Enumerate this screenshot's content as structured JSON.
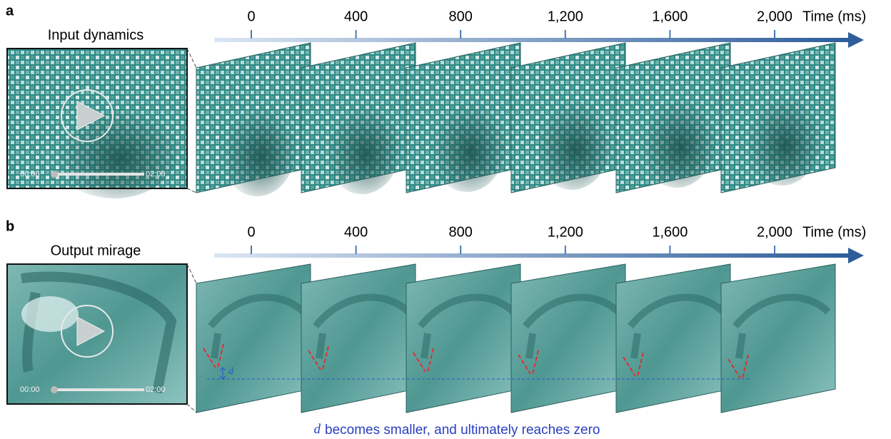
{
  "panels": [
    {
      "label": "a",
      "title": "Input dynamics",
      "player": {
        "start": "00:00",
        "end": "02:00"
      },
      "axis": {
        "ticks": [
          0,
          400,
          800,
          {
            "value": 1200,
            "label": "1,200"
          },
          {
            "value": 1600,
            "label": "1,600"
          },
          {
            "value": 2000,
            "label": "2,000"
          }
        ],
        "unit_label": "Time (ms)"
      }
    },
    {
      "label": "b",
      "title": "Output mirage",
      "player": {
        "start": "00:00",
        "end": "02:00"
      },
      "axis": {
        "ticks": [
          0,
          400,
          800,
          {
            "value": 1200,
            "label": "1,200"
          },
          {
            "value": 1600,
            "label": "1,600"
          },
          {
            "value": 2000,
            "label": "2,000"
          }
        ],
        "unit_label": "Time (ms)"
      },
      "annotation": "d"
    }
  ],
  "caption": {
    "variable": "d",
    "text": "becomes smaller, and ultimately reaches zero"
  }
}
